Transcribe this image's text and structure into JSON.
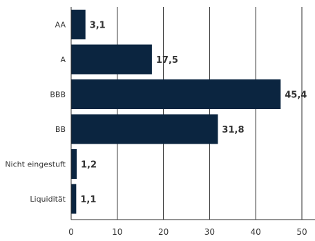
{
  "chart_data": {
    "type": "bar",
    "orientation": "horizontal",
    "categories": [
      "AA",
      "A",
      "BBB",
      "BB",
      "Nicht eingestuft",
      "Liquidität"
    ],
    "values": [
      3.1,
      17.5,
      45.4,
      31.8,
      1.2,
      1.1
    ],
    "value_labels": [
      "3,1",
      "17,5",
      "45,4",
      "31,8",
      "1,2",
      "1,1"
    ],
    "title": "",
    "xlabel": "",
    "ylabel": "",
    "xlim": [
      0,
      52
    ],
    "x_ticks": [
      0,
      10,
      20,
      30,
      40,
      50
    ],
    "x_tick_labels": [
      "0",
      "10",
      "20",
      "30",
      "40",
      "50"
    ],
    "grid": true,
    "colors": {
      "bar": "#0b2540",
      "grid": "#2b2b2b",
      "category_text": "#333333",
      "value_text": "#333333",
      "tick_text": "#333333"
    }
  }
}
